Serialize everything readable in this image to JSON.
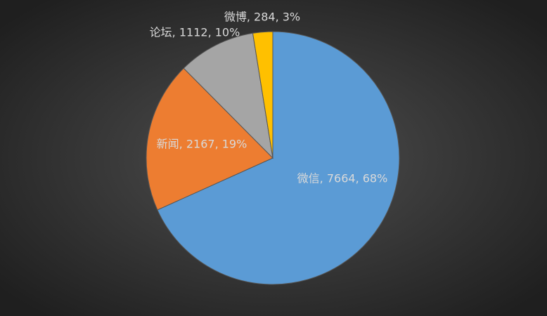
{
  "chart_data": {
    "type": "pie",
    "values": [
      7664,
      2167,
      1112,
      284
    ],
    "value_labels": [
      "微信, 7664, 68%",
      "新闻, 2167, 19%",
      "论坛, 1112, 10%",
      "微博, 284, 3%"
    ],
    "colors": [
      "#5b9bd5",
      "#ed7d31",
      "#a5a5a5",
      "#ffc000"
    ]
  }
}
